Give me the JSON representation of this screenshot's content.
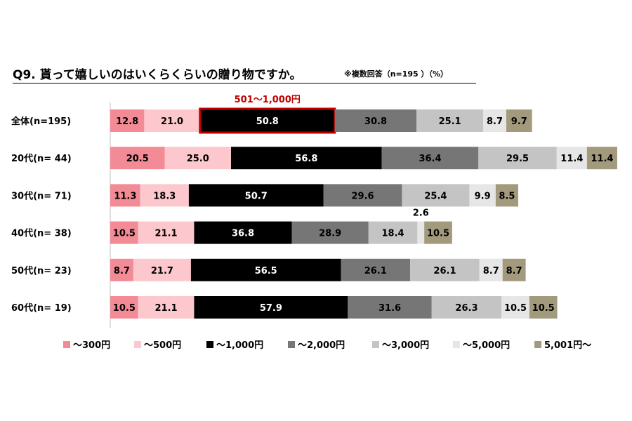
{
  "title": "Q9. 貰って嬉しいのはいくらくらいの贈り物ですか。",
  "subtitle": "※複数回答（n=195 ）（%）",
  "chart_data": {
    "type": "bar",
    "orientation": "horizontal",
    "stacked": true,
    "title": "Q9. 貰って嬉しいのはいくらくらいの贈り物ですか。",
    "xlabel": "",
    "ylabel": "",
    "categories": [
      "全体(n=195)",
      "20代(n=  44)",
      "30代(n=  71)",
      "40代(n=  38)",
      "50代(n=  23)",
      "60代(n=  19)"
    ],
    "series": [
      {
        "name": "～300円",
        "color": "#f28b95",
        "label_color": "#000000",
        "values": [
          12.8,
          20.5,
          11.3,
          10.5,
          8.7,
          10.5
        ]
      },
      {
        "name": "～500円",
        "color": "#fcc8cd",
        "label_color": "#000000",
        "values": [
          21.0,
          25.0,
          18.3,
          21.1,
          21.7,
          21.1
        ]
      },
      {
        "name": "～1,000円",
        "color": "#000000",
        "label_color": "#ffffff",
        "values": [
          50.8,
          56.8,
          50.7,
          36.8,
          56.5,
          57.9
        ]
      },
      {
        "name": "～2,000円",
        "color": "#767676",
        "label_color": "#000000",
        "values": [
          30.8,
          36.4,
          29.6,
          28.9,
          26.1,
          31.6
        ]
      },
      {
        "name": "～3,000円",
        "color": "#c4c4c4",
        "label_color": "#000000",
        "values": [
          25.1,
          29.5,
          25.4,
          18.4,
          26.1,
          26.3
        ]
      },
      {
        "name": "～5,000円",
        "color": "#e6e6e6",
        "label_color": "#000000",
        "values": [
          8.7,
          11.4,
          9.9,
          2.6,
          8.7,
          10.5
        ]
      },
      {
        "name": "5,001円～",
        "color": "#a39a7e",
        "label_color": "#000000",
        "values": [
          9.7,
          11.4,
          8.5,
          10.5,
          8.7,
          10.5
        ]
      }
    ],
    "highlight": {
      "label": "501～1,000円",
      "category": "全体(n=195)",
      "series": "～1,000円",
      "color": "#c00000"
    },
    "legend_position": "bottom",
    "grid": false
  }
}
